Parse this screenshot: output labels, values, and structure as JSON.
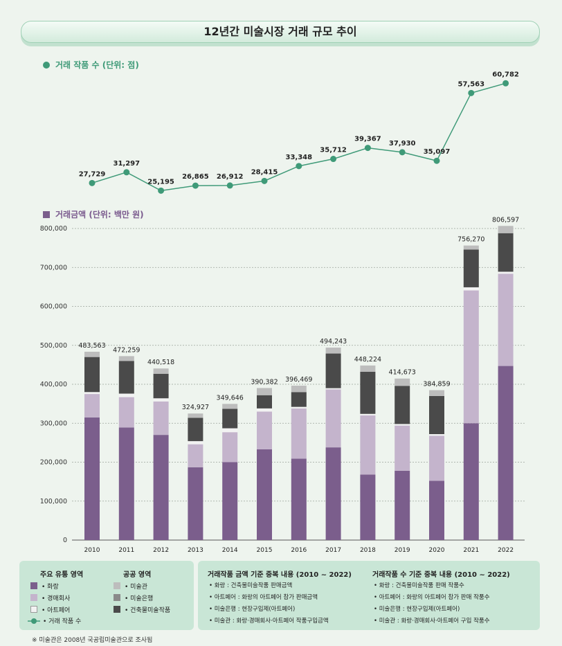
{
  "title": "12년간 미술시장 거래 규모 추이",
  "line_section_label": "거래 작품 수 (단위: 점)",
  "bar_section_label": "거래금액 (단위: 백만 원)",
  "colors": {
    "gallery": "#7b5e8c",
    "auction": "#c4b4cc",
    "artfair": "#f2f2f2",
    "museum": "#bdbdbd",
    "bank": "#8a8a8a",
    "building": "#4a4a4a",
    "line": "#3f9a78"
  },
  "chart_data": [
    {
      "type": "line",
      "x": [
        "2010",
        "2011",
        "2012",
        "2013",
        "2014",
        "2015",
        "2016",
        "2017",
        "2018",
        "2019",
        "2020",
        "2021",
        "2022"
      ],
      "values": [
        27729,
        31297,
        25195,
        26865,
        26912,
        28415,
        33348,
        35712,
        39367,
        37930,
        35097,
        57563,
        60782
      ],
      "labels": [
        "27,729",
        "31,297",
        "25,195",
        "26,865",
        "26,912",
        "28,415",
        "33,348",
        "35,712",
        "39,367",
        "37,930",
        "35,097",
        "57,563",
        "60,782"
      ],
      "ylabel": "거래 작품 수 (단위: 점)"
    },
    {
      "type": "bar",
      "stacked": true,
      "categories": [
        "2010",
        "2011",
        "2012",
        "2013",
        "2014",
        "2015",
        "2016",
        "2017",
        "2018",
        "2019",
        "2020",
        "2021",
        "2022"
      ],
      "series": [
        {
          "name": "화랑",
          "values": [
            315000,
            289000,
            270000,
            187000,
            200000,
            233000,
            209000,
            238000,
            168000,
            178000,
            152000,
            300000,
            447000
          ]
        },
        {
          "name": "경매회사",
          "values": [
            60000,
            78000,
            86000,
            59000,
            77000,
            97000,
            129000,
            149000,
            152000,
            116000,
            116000,
            341000,
            237000
          ]
        },
        {
          "name": "아트페어",
          "values": [
            5000,
            9000,
            8000,
            8000,
            10000,
            8000,
            4000,
            3000,
            4000,
            4000,
            4000,
            8000,
            5000
          ]
        },
        {
          "name": "건축물미술작품",
          "values": [
            90000,
            84000,
            63000,
            60000,
            50000,
            34000,
            38000,
            89000,
            108000,
            98000,
            98000,
            97000,
            99000
          ]
        },
        {
          "name": "미술은행",
          "values": [
            0,
            0,
            0,
            0,
            0,
            0,
            0,
            0,
            0,
            0,
            0,
            0,
            0
          ]
        },
        {
          "name": "미술관",
          "values": [
            13563,
            12259,
            13518,
            10927,
            12646,
            18382,
            16469,
            15243,
            16224,
            18673,
            14859,
            10270,
            18597
          ]
        }
      ],
      "totals": [
        483563,
        472259,
        440518,
        324927,
        349646,
        390382,
        396469,
        494243,
        448224,
        414673,
        384859,
        756270,
        806597
      ],
      "total_labels": [
        "483,563",
        "472,259",
        "440,518",
        "324,927",
        "349,646",
        "390,382",
        "396,469",
        "494,243",
        "448,224",
        "414,673",
        "384,859",
        "756,270",
        "806,597"
      ],
      "ylim": [
        0,
        800000
      ],
      "yticks": [
        "0",
        "100,000",
        "200,000",
        "300,000",
        "400,000",
        "500,000",
        "600,000",
        "700,000",
        "800,000"
      ],
      "grid": true
    }
  ],
  "legend": {
    "private_title": "주요 유통 영역",
    "public_title": "공공 영역",
    "private_items": [
      "• 화랑",
      "• 경매회사",
      "• 아트페어",
      "• 거래 작품 수"
    ],
    "public_items": [
      "• 미술관",
      "• 미술은행",
      "• 건축물미술작품"
    ]
  },
  "notes_amount": {
    "title": "거래작품 금액 기준 중복 내용 (2010 ~ 2022)",
    "items": [
      "•  화랑 : 건축물미술작품 판매금액",
      "•  아트페어 : 화랑의 아트페어 참가 판매금액",
      "•  미술은행 : 현장구입제(아트페어)",
      "•  미술관 : 화랑·경매회사·아트페어 작품구입금액"
    ]
  },
  "notes_count": {
    "title": "거래작품 수 기준 중복 내용 (2010 ~ 2022)",
    "items": [
      "•  화랑 : 건축물미술작품 판매 작품수",
      "•  아트페어 : 화랑의 아트페어 참가 판매 작품수",
      "•  미술은행 : 현장구입제(아트페어)",
      "•  미술관 : 화랑·경매회사·아트페어 구입 작품수"
    ]
  },
  "footnote": "※ 미술관은 2008년 국공립미술관으로 조사됨"
}
